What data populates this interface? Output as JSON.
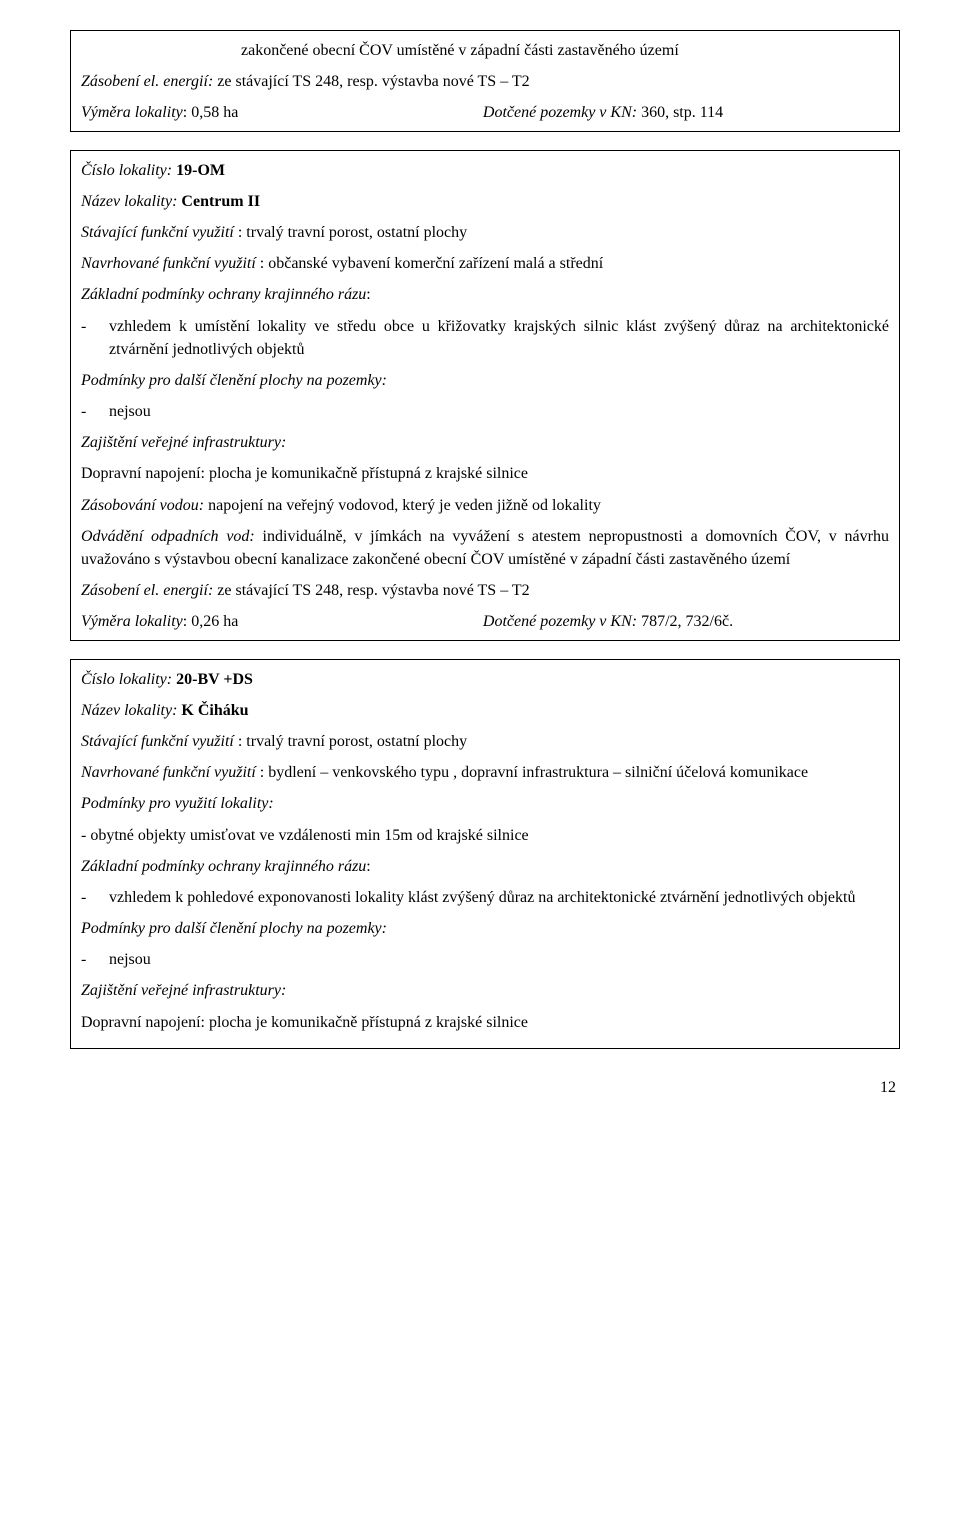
{
  "box1": {
    "topIndentLine": "zakončené obecní ČOV umístěné v západní části zastavěného území",
    "energyLabel": "Zásobení el. energií:",
    "energyValue": " ze stávající TS  248, resp. výstavba nové TS – T2",
    "areaLabel": "Výměra lokality",
    "areaValue": ": 0,58 ha",
    "parcelsLabel": "Dotčené pozemky v KN:",
    "parcelsValue": " 360, stp. 114"
  },
  "box2": {
    "numLabel": "Číslo lokality:",
    "numValue": " 19-OM",
    "nameLabel": "Název lokality:",
    "nameValue": " Centrum II",
    "existingLabel": "Stávající funkční využití",
    "existingValue": " : trvalý travní porost, ostatní plochy",
    "proposedLabel": "Navrhované funkční využití",
    "proposedValue": " :   občanské vybavení komerční zařízení malá a střední",
    "landscapeLabel": "Základní podmínky ochrany krajinného rázu",
    "landscapeColon": ":",
    "landscapeBullet": "vzhledem k umístění lokality ve středu obce u křižovatky krajských silnic klást zvýšený důraz na architektonické ztvárnění jednotlivých objektů",
    "subdivisionLabel": "Podmínky pro další členění plochy na pozemky:",
    "subdivisionBullet": "nejsou",
    "infraLabel": "Zajištění veřejné infrastruktury:",
    "transportLabel": "Dopravní napojení:",
    "transportValue": " plocha je komunikačně přístupná z krajské silnice",
    "waterLabel": "Zásobování vodou:",
    "waterValue": " napojení na veřejný vodovod, který je veden jižně  od lokality",
    "wasteLabel": "Odvádění odpadních vod:",
    "wasteValue": " individuálně, v jímkách na vyvážení  s atestem nepropustnosti a domovních ČOV, v návrhu uvažováno s výstavbou obecní  kanalizace zakončené obecní ČOV umístěné v západní části zastavěného území",
    "energyLabel": "Zásobení el. energií:",
    "energyValue": " ze stávající TS  248, resp. výstavba nové TS – T2",
    "areaLabel": "Výměra lokality",
    "areaValue": ": 0,26 ha",
    "parcelsLabel": "Dotčené pozemky v KN:",
    "parcelsValue": " 787/2, 732/6č."
  },
  "box3": {
    "numLabel": "Číslo lokality:",
    "numValue": " 20-BV +DS",
    "nameLabel": "Název lokality:",
    "nameValue": " K Čiháku",
    "existingLabel": "Stávající funkční využití",
    "existingValue": " : trvalý travní porost, ostatní plochy",
    "proposedLabel": "Navrhované funkční využití",
    "proposedValue": " :   bydlení – venkovského typu , dopravní infrastruktura – silniční  účelová komunikace",
    "conditionsLabel": "Podmínky pro využití lokality:",
    "conditionsBullet": "- obytné objekty umisťovat ve vzdálenosti min 15m  od krajské silnice",
    "landscapeLabel": "Základní podmínky ochrany krajinného rázu",
    "landscapeColon": ":",
    "landscapeBullet": "vzhledem k pohledové exponovanosti lokality klást zvýšený důraz na architektonické ztvárnění jednotlivých objektů",
    "subdivisionLabel": "Podmínky pro další členění plochy na pozemky:",
    "subdivisionBullet": "nejsou",
    "infraLabel": "Zajištění veřejné infrastruktury:",
    "transportLabel": "Dopravní napojení:",
    "transportValue": " plocha je komunikačně přístupná z krajské silnice"
  },
  "pageNumber": "12"
}
